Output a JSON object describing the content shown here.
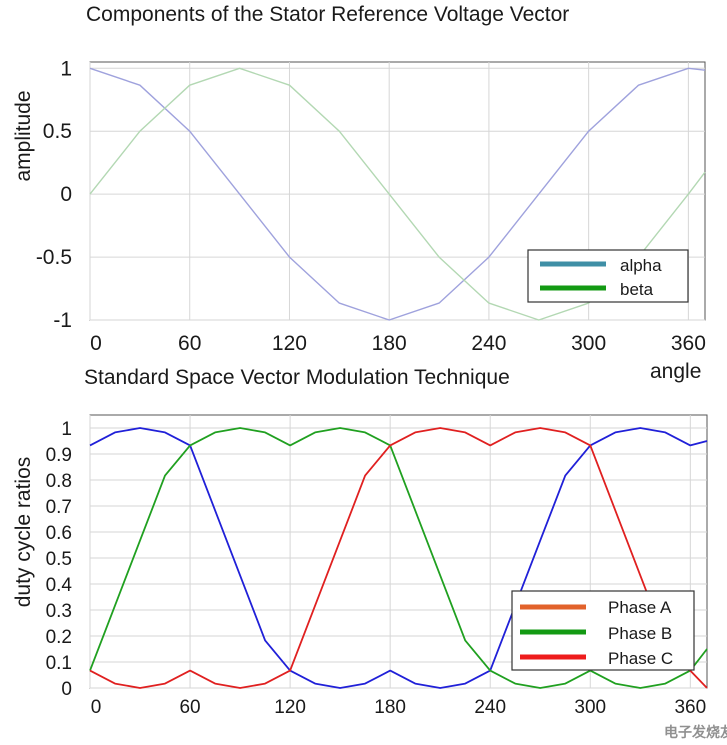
{
  "watermark": "电子发烧友",
  "chart_data": [
    {
      "type": "line",
      "title": "Components of the Stator Reference Voltage Vector",
      "xlabel": "angle",
      "ylabel": "amplitude",
      "xlim": [
        0,
        370
      ],
      "ylim": [
        -1,
        1.05
      ],
      "xticks": [
        0,
        60,
        120,
        180,
        240,
        300,
        360
      ],
      "xtick_labels": [
        "0",
        "60",
        "120",
        "180",
        "240",
        "300",
        "360"
      ],
      "yticks": [
        1,
        0.5,
        0,
        -0.5,
        -1
      ],
      "ytick_labels": [
        "1",
        "0.5",
        "0",
        "-0.5",
        "-1"
      ],
      "grid": true,
      "legend_position": "bottom-right",
      "x": [
        0,
        30,
        60,
        90,
        120,
        150,
        180,
        210,
        240,
        270,
        300,
        330,
        360,
        370
      ],
      "series": [
        {
          "name": "alpha",
          "color": "#3f8fa6",
          "line_color": "#9fa2dd",
          "values": [
            1,
            0.866,
            0.5,
            0,
            -0.5,
            -0.866,
            -1,
            -0.866,
            -0.5,
            0,
            0.5,
            0.866,
            1,
            0.985
          ]
        },
        {
          "name": "beta",
          "color": "#139a13",
          "line_color": "#b3d8b3",
          "values": [
            0,
            0.5,
            0.866,
            1,
            0.866,
            0.5,
            0,
            -0.5,
            -0.866,
            -1,
            -0.866,
            -0.5,
            0,
            0.174
          ]
        }
      ]
    },
    {
      "type": "line",
      "title": "Standard Space Vector Modulation Technique",
      "xlabel": "",
      "ylabel": "duty cycle ratios",
      "xlim": [
        0,
        370
      ],
      "ylim": [
        0,
        1.05
      ],
      "xticks": [
        0,
        60,
        120,
        180,
        240,
        300,
        360
      ],
      "xtick_labels": [
        "0",
        "60",
        "120",
        "180",
        "240",
        "300",
        "360"
      ],
      "yticks": [
        1,
        0.9,
        0.8,
        0.7,
        0.6,
        0.5,
        0.4,
        0.3,
        0.2,
        0.1,
        0
      ],
      "ytick_labels": [
        "1",
        "0.9",
        "0.8",
        "0.7",
        "0.6",
        "0.5",
        "0.4",
        "0.3",
        "0.2",
        "0.1",
        "0"
      ],
      "grid": true,
      "legend_position": "bottom-right",
      "x": [
        0,
        15,
        30,
        45,
        60,
        75,
        90,
        105,
        120,
        135,
        150,
        165,
        180,
        195,
        210,
        225,
        240,
        255,
        270,
        285,
        300,
        315,
        330,
        345,
        360,
        370
      ],
      "series": [
        {
          "name": "Phase A",
          "color": "#e2622b",
          "line_color": "#2020d8",
          "values": [
            0.933,
            0.983,
            1.0,
            0.983,
            0.933,
            0.683,
            0.433,
            0.183,
            0.067,
            0.017,
            0.0,
            0.017,
            0.067,
            0.017,
            0.0,
            0.017,
            0.067,
            0.317,
            0.567,
            0.817,
            0.933,
            0.983,
            1.0,
            0.983,
            0.933,
            0.95
          ]
        },
        {
          "name": "Phase B",
          "color": "#139a13",
          "line_color": "#20a020",
          "values": [
            0.067,
            0.317,
            0.567,
            0.817,
            0.933,
            0.983,
            1.0,
            0.983,
            0.933,
            0.983,
            1.0,
            0.983,
            0.933,
            0.683,
            0.433,
            0.183,
            0.067,
            0.017,
            0.0,
            0.017,
            0.067,
            0.017,
            0.0,
            0.017,
            0.067,
            0.15
          ]
        },
        {
          "name": "Phase C",
          "color": "#ee1c1c",
          "line_color": "#e02020",
          "values": [
            0.067,
            0.017,
            0.0,
            0.017,
            0.067,
            0.017,
            0.0,
            0.017,
            0.067,
            0.317,
            0.567,
            0.817,
            0.933,
            0.983,
            1.0,
            0.983,
            0.933,
            0.983,
            1.0,
            0.983,
            0.933,
            0.683,
            0.433,
            0.183,
            0.067,
            0.0
          ]
        }
      ]
    }
  ]
}
